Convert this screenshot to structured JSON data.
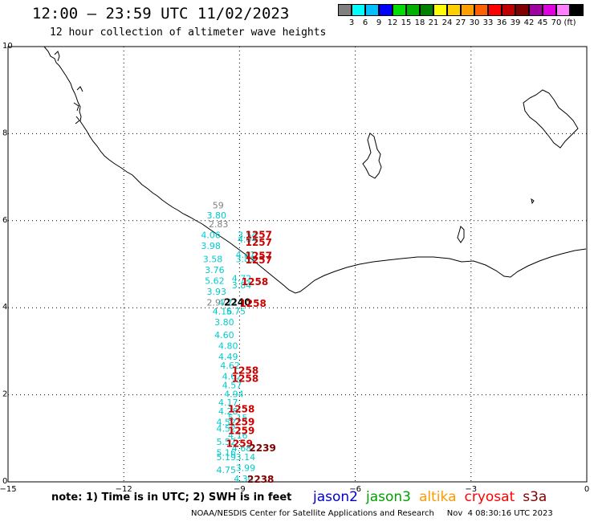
{
  "header": {
    "title": "12:00 – 23:59 UTC 11/02/2023",
    "subtitle": "12 hour collection of altimeter wave heights"
  },
  "colorbar": {
    "colors": [
      "#808080",
      "#00ffff",
      "#00bfff",
      "#0000ff",
      "#00dd00",
      "#00b000",
      "#008000",
      "#ffff00",
      "#ffd000",
      "#ffa000",
      "#ff6000",
      "#ff0000",
      "#c00000",
      "#800000",
      "#a000a0",
      "#e000e0",
      "#ff80ff",
      "#000000"
    ],
    "labels": [
      "3",
      "6",
      "9",
      "12",
      "15",
      "18",
      "21",
      "24",
      "27",
      "30",
      "33",
      "36",
      "39",
      "42",
      "45",
      "70",
      "(ft)"
    ]
  },
  "map": {
    "lon_range": [
      -15,
      0
    ],
    "lat_range": [
      0,
      10
    ],
    "x_ticks": [
      "−15",
      "−12",
      "−9",
      "−6",
      "−3",
      "0"
    ],
    "y_ticks": [
      "10",
      "8",
      "6",
      "4",
      "2",
      "0"
    ],
    "observations": [
      {
        "lon": -9.7,
        "lat": 6.28,
        "text": "59",
        "color": "#808080"
      },
      {
        "lon": -9.85,
        "lat": 6.05,
        "text": "3.80",
        "color": "#00cccc"
      },
      {
        "lon": -9.8,
        "lat": 5.85,
        "text": "2.83",
        "color": "#808080"
      },
      {
        "lon": -10.0,
        "lat": 5.6,
        "text": "4.06",
        "color": "#00cccc"
      },
      {
        "lon": -10.0,
        "lat": 5.35,
        "text": "3.98",
        "color": "#00cccc"
      },
      {
        "lon": -9.95,
        "lat": 5.05,
        "text": "3.58",
        "color": "#00cccc"
      },
      {
        "lon": -9.9,
        "lat": 4.8,
        "text": "3.76",
        "color": "#00cccc"
      },
      {
        "lon": -9.9,
        "lat": 4.55,
        "text": "5.62",
        "color": "#00cccc"
      },
      {
        "lon": -9.85,
        "lat": 4.3,
        "text": "3.93",
        "color": "#00cccc"
      },
      {
        "lon": -9.85,
        "lat": 4.05,
        "text": "2.97",
        "color": "#808080"
      },
      {
        "lon": -9.7,
        "lat": 3.85,
        "text": "4.16",
        "color": "#00cccc"
      },
      {
        "lon": -9.65,
        "lat": 3.6,
        "text": "3.80",
        "color": "#00cccc"
      },
      {
        "lon": -9.65,
        "lat": 3.3,
        "text": "4.60",
        "color": "#00cccc"
      },
      {
        "lon": -9.55,
        "lat": 3.05,
        "text": "4.80",
        "color": "#00cccc"
      },
      {
        "lon": -9.55,
        "lat": 2.8,
        "text": "4.49",
        "color": "#00cccc"
      },
      {
        "lon": -9.5,
        "lat": 2.6,
        "text": "4.62",
        "color": "#00cccc"
      },
      {
        "lon": -9.45,
        "lat": 2.35,
        "text": "4.62",
        "color": "#00cccc"
      },
      {
        "lon": -9.45,
        "lat": 2.15,
        "text": "4.57",
        "color": "#00cccc"
      },
      {
        "lon": -9.4,
        "lat": 1.95,
        "text": "4.94",
        "color": "#00cccc"
      },
      {
        "lon": -9.55,
        "lat": 1.75,
        "text": "4.17",
        "color": "#00cccc"
      },
      {
        "lon": -9.55,
        "lat": 1.55,
        "text": "4.28",
        "color": "#00cccc"
      },
      {
        "lon": -9.3,
        "lat": 1.4,
        "text": "5.15",
        "color": "#00cccc"
      },
      {
        "lon": -9.6,
        "lat": 1.3,
        "text": "4.52",
        "color": "#00cccc"
      },
      {
        "lon": -9.6,
        "lat": 1.15,
        "text": "4.52",
        "color": "#00cccc"
      },
      {
        "lon": -9.3,
        "lat": 1.0,
        "text": "4.16",
        "color": "#00cccc"
      },
      {
        "lon": -9.6,
        "lat": 0.85,
        "text": "5.52",
        "color": "#00cccc"
      },
      {
        "lon": -9.2,
        "lat": 0.7,
        "text": "4.68",
        "color": "#00cccc"
      },
      {
        "lon": -9.6,
        "lat": 0.6,
        "text": "5.16",
        "color": "#00cccc"
      },
      {
        "lon": -9.6,
        "lat": 0.5,
        "text": "5.19",
        "color": "#00cccc"
      },
      {
        "lon": -9.1,
        "lat": 0.5,
        "text": "3.14",
        "color": "#00cccc"
      },
      {
        "lon": -9.6,
        "lat": 0.2,
        "text": "4.75",
        "color": "#00cccc"
      },
      {
        "lon": -9.1,
        "lat": 0.25,
        "text": "3.99",
        "color": "#00cccc"
      },
      {
        "lon": -9.15,
        "lat": 0.0,
        "text": "4.30",
        "color": "#00cccc"
      },
      {
        "lon": -9.05,
        "lat": 5.6,
        "text": "3.54",
        "color": "#00cccc"
      },
      {
        "lon": -9.05,
        "lat": 5.5,
        "text": "4.04",
        "color": "#00cccc"
      },
      {
        "lon": -9.1,
        "lat": 5.15,
        "text": "4.41",
        "color": "#00cccc"
      },
      {
        "lon": -9.1,
        "lat": 5.05,
        "text": "3.83",
        "color": "#00cccc"
      },
      {
        "lon": -9.2,
        "lat": 4.6,
        "text": "4.72",
        "color": "#00cccc"
      },
      {
        "lon": -9.2,
        "lat": 4.45,
        "text": "3.84",
        "color": "#00cccc"
      },
      {
        "lon": -9.35,
        "lat": 3.85,
        "text": "5.75",
        "color": "#00cccc"
      },
      {
        "lon": -9.55,
        "lat": 4.05,
        "text": "4.21",
        "color": "#00cccc"
      }
    ],
    "times": [
      {
        "lon": -8.85,
        "lat": 5.6,
        "text": "1257",
        "color": "#cc0000"
      },
      {
        "lon": -8.85,
        "lat": 5.42,
        "text": "1257",
        "color": "#cc0000"
      },
      {
        "lon": -8.85,
        "lat": 5.12,
        "text": "1257",
        "color": "#cc0000"
      },
      {
        "lon": -8.85,
        "lat": 5.02,
        "text": "1257",
        "color": "#cc0000"
      },
      {
        "lon": -8.95,
        "lat": 4.52,
        "text": "1258",
        "color": "#cc0000"
      },
      {
        "lon": -9.4,
        "lat": 4.05,
        "text": "2240",
        "color": "#000000"
      },
      {
        "lon": -9.0,
        "lat": 4.02,
        "text": "1258",
        "color": "#cc0000"
      },
      {
        "lon": -9.2,
        "lat": 2.48,
        "text": "1258",
        "color": "#cc0000"
      },
      {
        "lon": -9.2,
        "lat": 2.3,
        "text": "1258",
        "color": "#cc0000"
      },
      {
        "lon": -9.3,
        "lat": 1.6,
        "text": "1258",
        "color": "#cc0000"
      },
      {
        "lon": -9.3,
        "lat": 1.3,
        "text": "1259",
        "color": "#cc0000"
      },
      {
        "lon": -9.3,
        "lat": 1.1,
        "text": "1259",
        "color": "#cc0000"
      },
      {
        "lon": -9.35,
        "lat": 0.8,
        "text": "1259",
        "color": "#cc0000"
      },
      {
        "lon": -8.75,
        "lat": 0.7,
        "text": "2239",
        "color": "#800000"
      },
      {
        "lon": -8.8,
        "lat": -0.02,
        "text": "2238",
        "color": "#800000"
      }
    ]
  },
  "footer": {
    "note": "note:  1) Time is in UTC;  2) SWH is in feet",
    "satellites": [
      {
        "name": "jason2",
        "color": "#0000cc"
      },
      {
        "name": "jason3",
        "color": "#00a000"
      },
      {
        "name": "altika",
        "color": "#ff9900"
      },
      {
        "name": "cryosat",
        "color": "#ff0000"
      },
      {
        "name": "s3a",
        "color": "#800000"
      }
    ],
    "credit": "NOAA/NESDIS Center for Satellite Applications and Research     Nov  4 08:30:16 UTC 2023"
  }
}
